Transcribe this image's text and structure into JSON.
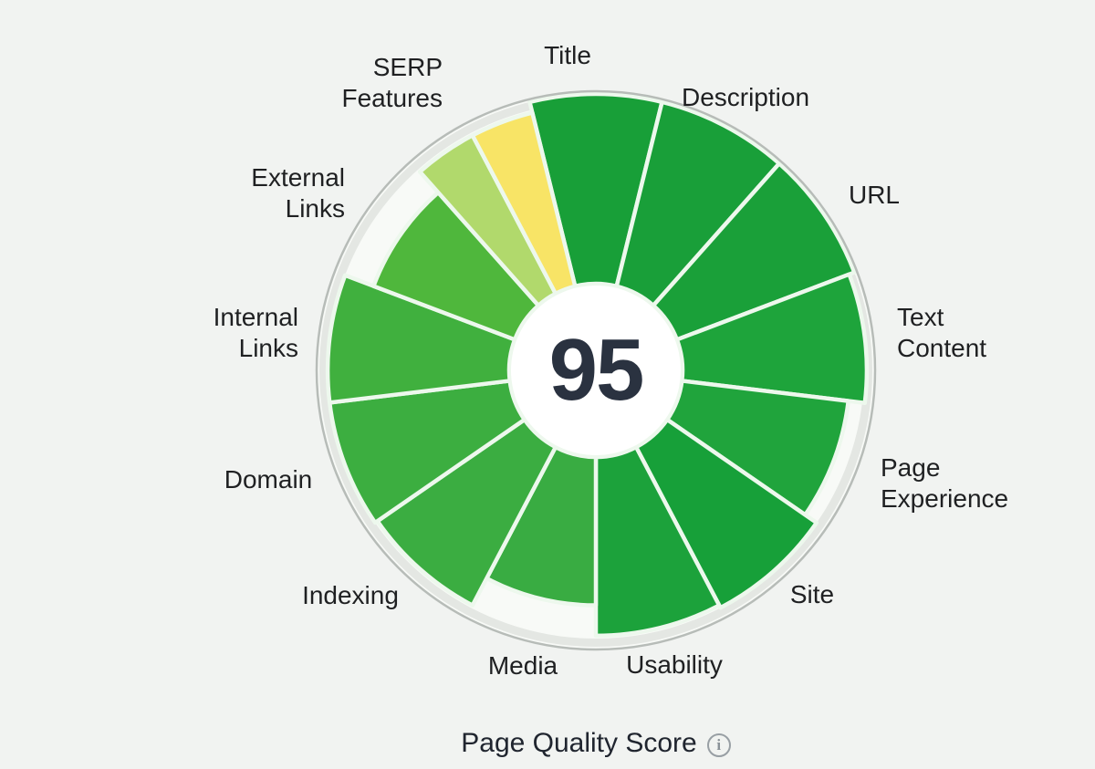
{
  "page": {
    "background": "#f1f3f1",
    "label_color": "#1f2022"
  },
  "chart_data": {
    "type": "radial-segment-gauge",
    "title": "Page Quality Score",
    "center_value": "95",
    "center_value_color": "#2a3240",
    "value_range": [
      0,
      100
    ],
    "legend_position": "around-wheel",
    "grid": false,
    "categories": [
      {
        "label": "Title",
        "display": "Title",
        "score": 100,
        "color": "#189f38"
      },
      {
        "label": "Description",
        "display": "Description",
        "score": 100,
        "color": "#199f39"
      },
      {
        "label": "URL",
        "display": "URL",
        "score": 100,
        "color": "#1aa039"
      },
      {
        "label": "Text Content",
        "display": "Text\nContent",
        "score": 98,
        "color": "#1ea43b"
      },
      {
        "label": "Page Experience",
        "display": "Page\nExperience",
        "score": 92,
        "color": "#20a43c"
      },
      {
        "label": "Site",
        "display": "Site",
        "score": 97,
        "color": "#17a039"
      },
      {
        "label": "Usability",
        "display": "Usability",
        "score": 96,
        "color": "#1ca23b"
      },
      {
        "label": "Media",
        "display": "Media",
        "score": 85,
        "color": "#39ac42"
      },
      {
        "label": "Indexing",
        "display": "Indexing",
        "score": 96,
        "color": "#3bad41"
      },
      {
        "label": "Domain",
        "display": "Domain",
        "score": 97,
        "color": "#3cae40"
      },
      {
        "label": "Internal Links",
        "display": "Internal\nLinks",
        "score": 97,
        "color": "#40b03e"
      },
      {
        "label": "External Links",
        "display": "External\nLinks",
        "score": 86,
        "color": "#4fb73c"
      },
      {
        "label": "SERP Features",
        "display": "SERP\nFeatures",
        "score": 96,
        "color": "#f8e466"
      }
    ],
    "segments": [
      {
        "category": "Title",
        "start_deg": -13.85,
        "end_deg": 13.85,
        "radius_pct": 100,
        "color": "#189f38"
      },
      {
        "category": "Description",
        "start_deg": 13.85,
        "end_deg": 41.54,
        "radius_pct": 100,
        "color": "#199f39"
      },
      {
        "category": "URL",
        "start_deg": 41.54,
        "end_deg": 69.23,
        "radius_pct": 100,
        "color": "#1aa039"
      },
      {
        "category": "Text Content",
        "start_deg": 69.23,
        "end_deg": 96.92,
        "radius_pct": 98,
        "color": "#1ea43b"
      },
      {
        "category": "Page Experience",
        "start_deg": 96.92,
        "end_deg": 124.62,
        "radius_pct": 92,
        "color": "#20a43c"
      },
      {
        "category": "Site",
        "start_deg": 124.62,
        "end_deg": 152.31,
        "radius_pct": 97,
        "color": "#17a039"
      },
      {
        "category": "Usability",
        "start_deg": 152.31,
        "end_deg": 180.0,
        "radius_pct": 96,
        "color": "#1ca23b"
      },
      {
        "category": "Media",
        "start_deg": 180.0,
        "end_deg": 207.69,
        "radius_pct": 85,
        "color": "#39ac42"
      },
      {
        "category": "Indexing",
        "start_deg": 207.69,
        "end_deg": 235.38,
        "radius_pct": 96,
        "color": "#3bad41"
      },
      {
        "category": "Domain",
        "start_deg": 235.38,
        "end_deg": 263.08,
        "radius_pct": 97,
        "color": "#3cae40"
      },
      {
        "category": "Internal Links",
        "start_deg": 263.08,
        "end_deg": 290.77,
        "radius_pct": 97,
        "color": "#40b03e"
      },
      {
        "category": "External Links",
        "start_deg": 290.77,
        "end_deg": 318.46,
        "radius_pct": 86,
        "color": "#4fb73c"
      },
      {
        "category": "SERP Features",
        "part": "lime",
        "start_deg": 318.46,
        "end_deg": 332.31,
        "radius_pct": 96,
        "color": "#b1d96c"
      },
      {
        "category": "SERP Features",
        "part": "yellow",
        "start_deg": 332.31,
        "end_deg": 346.15,
        "radius_pct": 96,
        "color": "#f8e466"
      }
    ],
    "geometry": {
      "outer_radius": 303,
      "inner_radius": 95
    },
    "ring": {
      "inner_bg": "#f8faf7",
      "band_color": "#e4e7e3",
      "edge_color": "#b7bcb8",
      "separator_color": "#edf8ed",
      "center_bg": "#ffffff"
    }
  },
  "footer": {
    "title": "Page Quality Score",
    "info_icon_glyph": "i"
  }
}
